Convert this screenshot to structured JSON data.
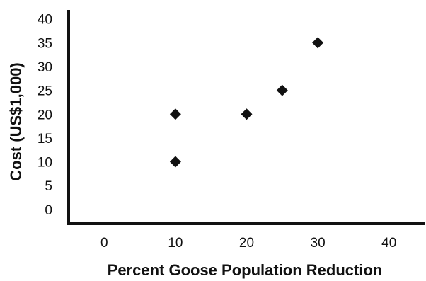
{
  "chart_data": {
    "type": "scatter",
    "title": "",
    "xlabel": "Percent Goose Population Reduction",
    "ylabel": "Cost (US$1,000)",
    "xlim": [
      -5,
      45
    ],
    "ylim": [
      -3,
      41
    ],
    "xticks": [
      0,
      10,
      20,
      30,
      40
    ],
    "yticks": [
      0,
      5,
      10,
      15,
      20,
      25,
      30,
      35,
      40
    ],
    "grid": false,
    "marker": "diamond",
    "series": [
      {
        "points": [
          {
            "x": 10,
            "y": 10
          },
          {
            "x": 10,
            "y": 20
          },
          {
            "x": 20,
            "y": 20
          },
          {
            "x": 25,
            "y": 25
          },
          {
            "x": 30,
            "y": 35
          }
        ]
      }
    ],
    "colors": {
      "marker": "#111111",
      "axis": "#111111",
      "text": "#111111"
    }
  }
}
